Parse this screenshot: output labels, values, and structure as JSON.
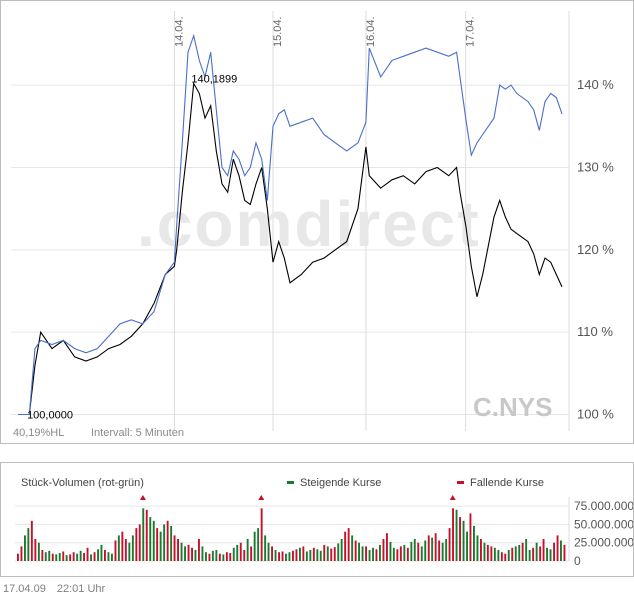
{
  "chart_data": [
    {
      "type": "line",
      "date_labels": [
        "14.04.",
        "15.04.",
        "16.04.",
        "17.04."
      ],
      "y_ticks": [
        100,
        110,
        120,
        130,
        140
      ],
      "y_tick_suffix": " %",
      "ylim": [
        98,
        149
      ],
      "start_label": "100,0000",
      "peak_label": "140,1899",
      "watermark": ".comdirect",
      "symbol": "C.NYS",
      "hl_label": "40,19%HL",
      "interval_label": "Intervall: 5 Minuten",
      "series": [
        {
          "color": "#000000",
          "points": [
            [
              0,
              100
            ],
            [
              1,
              100
            ],
            [
              1.5,
              106
            ],
            [
              2,
              110
            ],
            [
              3,
              108
            ],
            [
              4,
              109
            ],
            [
              5,
              107
            ],
            [
              6,
              106.5
            ],
            [
              7,
              107
            ],
            [
              8,
              108
            ],
            [
              9,
              108.5
            ],
            [
              10,
              109.5
            ],
            [
              11,
              111
            ],
            [
              12,
              113.5
            ],
            [
              13,
              117
            ],
            [
              13.8,
              118
            ],
            [
              14,
              120
            ],
            [
              14.5,
              127
            ],
            [
              15,
              133
            ],
            [
              15.5,
              140.2
            ],
            [
              16,
              139
            ],
            [
              16.5,
              136
            ],
            [
              17,
              137.5
            ],
            [
              17.5,
              132
            ],
            [
              18,
              128
            ],
            [
              18.5,
              127
            ],
            [
              19,
              131
            ],
            [
              19.5,
              129
            ],
            [
              20,
              126
            ],
            [
              20.5,
              125.5
            ],
            [
              21,
              128
            ],
            [
              21.5,
              130
            ],
            [
              22,
              125
            ],
            [
              22.5,
              118.5
            ],
            [
              23,
              121
            ],
            [
              23.5,
              119
            ],
            [
              24,
              116
            ],
            [
              25,
              117
            ],
            [
              26,
              118.5
            ],
            [
              27,
              119
            ],
            [
              28,
              120
            ],
            [
              29,
              121
            ],
            [
              30,
              125
            ],
            [
              30.7,
              132.5
            ],
            [
              31,
              129
            ],
            [
              32,
              127.5
            ],
            [
              33,
              128.5
            ],
            [
              34,
              129
            ],
            [
              35,
              128
            ],
            [
              36,
              129.5
            ],
            [
              37,
              130
            ],
            [
              38,
              129
            ],
            [
              38.7,
              130
            ],
            [
              39,
              127
            ],
            [
              39.5,
              123
            ],
            [
              40,
              118
            ],
            [
              40.5,
              114.3
            ],
            [
              41,
              117
            ],
            [
              42,
              124
            ],
            [
              42.5,
              126
            ],
            [
              43,
              124
            ],
            [
              43.5,
              122.5
            ],
            [
              44,
              122
            ],
            [
              45,
              121
            ],
            [
              45.5,
              119.5
            ],
            [
              46,
              117
            ],
            [
              46.5,
              119
            ],
            [
              47,
              118.5
            ],
            [
              47.5,
              117
            ],
            [
              48,
              115.5
            ]
          ]
        },
        {
          "color": "#4a6fc8",
          "points": [
            [
              0,
              100
            ],
            [
              1,
              100
            ],
            [
              1.5,
              108
            ],
            [
              2,
              109
            ],
            [
              3,
              108.5
            ],
            [
              4,
              109
            ],
            [
              5,
              108
            ],
            [
              6,
              107.5
            ],
            [
              7,
              108
            ],
            [
              8,
              109.5
            ],
            [
              9,
              111
            ],
            [
              10,
              111.5
            ],
            [
              11,
              111
            ],
            [
              12,
              112.5
            ],
            [
              13,
              117
            ],
            [
              13.8,
              118.5
            ],
            [
              14,
              123
            ],
            [
              14.5,
              133
            ],
            [
              15,
              144
            ],
            [
              15.5,
              146
            ],
            [
              16,
              143
            ],
            [
              16.5,
              141
            ],
            [
              17,
              144
            ],
            [
              17.5,
              137
            ],
            [
              18,
              130
            ],
            [
              18.5,
              129
            ],
            [
              19,
              132
            ],
            [
              19.5,
              131
            ],
            [
              20,
              129
            ],
            [
              20.5,
              130
            ],
            [
              21,
              133
            ],
            [
              21.5,
              131
            ],
            [
              22,
              126
            ],
            [
              22.5,
              135
            ],
            [
              23,
              136.5
            ],
            [
              23.5,
              137
            ],
            [
              24,
              135
            ],
            [
              25,
              135.5
            ],
            [
              26,
              136
            ],
            [
              27,
              134
            ],
            [
              28,
              133
            ],
            [
              29,
              132
            ],
            [
              30,
              133
            ],
            [
              30.7,
              135.5
            ],
            [
              31,
              144.5
            ],
            [
              32,
              141
            ],
            [
              33,
              143
            ],
            [
              34,
              143.5
            ],
            [
              35,
              144
            ],
            [
              36,
              144.5
            ],
            [
              37,
              144
            ],
            [
              38,
              143.5
            ],
            [
              38.7,
              144
            ],
            [
              39,
              141
            ],
            [
              39.5,
              136
            ],
            [
              40,
              131.5
            ],
            [
              40.5,
              133
            ],
            [
              41,
              134
            ],
            [
              42,
              136
            ],
            [
              42.5,
              140
            ],
            [
              43,
              139.5
            ],
            [
              43.5,
              140
            ],
            [
              44,
              139
            ],
            [
              45,
              138
            ],
            [
              45.5,
              137
            ],
            [
              46,
              134.5
            ],
            [
              46.5,
              138
            ],
            [
              47,
              139
            ],
            [
              47.5,
              138.5
            ],
            [
              48,
              136.5
            ]
          ]
        }
      ]
    },
    {
      "type": "bar",
      "title": "Stück-Volumen (rot-grün)",
      "legend_up": "Steigende Kurse",
      "legend_down": "Fallende Kurse",
      "up_color": "#1a7a2e",
      "down_color": "#c8102e",
      "y_ticks": [
        "75.000.000",
        "50.000.000",
        "25.000.000",
        "0"
      ],
      "ylim": [
        0,
        82000000
      ],
      "values": [
        10000000,
        20000000,
        35000000,
        45000000,
        55000000,
        30000000,
        25000000,
        15000000,
        12000000,
        14000000,
        10000000,
        9000000,
        11000000,
        13000000,
        8000000,
        9000000,
        12000000,
        10000000,
        14000000,
        11000000,
        18000000,
        9000000,
        12000000,
        16000000,
        22000000,
        15000000,
        12000000,
        10000000,
        28000000,
        35000000,
        40000000,
        30000000,
        25000000,
        35000000,
        45000000,
        50000000,
        72000000,
        70000000,
        60000000,
        55000000,
        45000000,
        40000000,
        50000000,
        55000000,
        48000000,
        35000000,
        30000000,
        25000000,
        20000000,
        22000000,
        18000000,
        15000000,
        30000000,
        20000000,
        12000000,
        10000000,
        14000000,
        15000000,
        10000000,
        9000000,
        12000000,
        11000000,
        18000000,
        22000000,
        25000000,
        15000000,
        30000000,
        20000000,
        40000000,
        45000000,
        72000000,
        35000000,
        25000000,
        20000000,
        15000000,
        12000000,
        13000000,
        10000000,
        12000000,
        14000000,
        16000000,
        18000000,
        20000000,
        13000000,
        15000000,
        18000000,
        16000000,
        14000000,
        22000000,
        20000000,
        17000000,
        19000000,
        24000000,
        30000000,
        40000000,
        45000000,
        35000000,
        28000000,
        25000000,
        20000000,
        20000000,
        15000000,
        18000000,
        16000000,
        22000000,
        30000000,
        38000000,
        26000000,
        18000000,
        16000000,
        20000000,
        22000000,
        18000000,
        26000000,
        30000000,
        25000000,
        20000000,
        28000000,
        35000000,
        32000000,
        38000000,
        28000000,
        25000000,
        30000000,
        45000000,
        72000000,
        70000000,
        60000000,
        55000000,
        40000000,
        65000000,
        48000000,
        35000000,
        30000000,
        25000000,
        22000000,
        20000000,
        18000000,
        15000000,
        12000000,
        10000000,
        15000000,
        18000000,
        20000000,
        22000000,
        25000000,
        30000000,
        15000000,
        18000000,
        25000000,
        20000000,
        30000000,
        18000000,
        16000000,
        25000000,
        35000000,
        28000000,
        22000000
      ]
    }
  ],
  "footer": {
    "date": "17.04.09",
    "time": "22:01 Uhr"
  }
}
